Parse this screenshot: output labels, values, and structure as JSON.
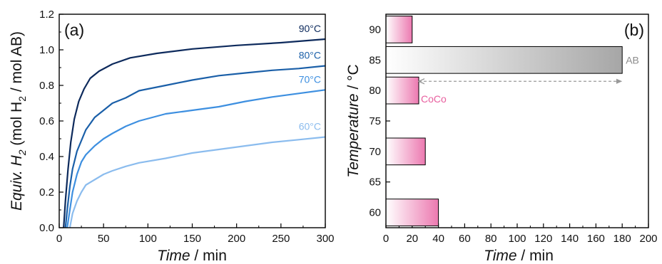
{
  "panels": {
    "a": {
      "label": "(a)"
    },
    "b": {
      "label": "(b)"
    }
  },
  "chart_data": [
    {
      "type": "line",
      "panel": "(a)",
      "xlabel_main": "Time",
      "xlabel_unit": " / min",
      "ylabel_parts": {
        "a": "Equiv. H",
        "b": "2",
        "c": " (mol H",
        "d": "2",
        "e": " / mol AB)"
      },
      "xlim": [
        0,
        300
      ],
      "ylim": [
        0,
        1.2
      ],
      "xticks": [
        0,
        50,
        100,
        150,
        200,
        250,
        300
      ],
      "yticks": [
        0.0,
        0.2,
        0.4,
        0.6,
        0.8,
        1.0,
        1.2
      ],
      "ytick_labels": [
        "0.0",
        "0.2",
        "0.4",
        "0.6",
        "0.8",
        "1.0",
        "1.2"
      ],
      "series": [
        {
          "name": "90°C",
          "color": "#0d2a5c",
          "x": [
            5,
            7,
            10,
            13,
            17,
            22,
            28,
            35,
            45,
            60,
            80,
            110,
            150,
            200,
            250,
            300
          ],
          "y": [
            0.0,
            0.15,
            0.33,
            0.48,
            0.61,
            0.71,
            0.78,
            0.84,
            0.88,
            0.92,
            0.955,
            0.98,
            1.005,
            1.025,
            1.04,
            1.06
          ]
        },
        {
          "name": "80°C",
          "color": "#1a5fa8",
          "x": [
            7,
            9,
            12,
            15,
            20,
            25,
            30,
            40,
            50,
            60,
            75,
            90,
            120,
            150,
            180,
            210,
            240,
            270,
            300
          ],
          "y": [
            0.0,
            0.1,
            0.23,
            0.33,
            0.43,
            0.49,
            0.55,
            0.62,
            0.66,
            0.7,
            0.73,
            0.77,
            0.8,
            0.83,
            0.855,
            0.87,
            0.885,
            0.895,
            0.91
          ]
        },
        {
          "name": "70°C",
          "color": "#3d8fe0",
          "x": [
            9,
            12,
            15,
            20,
            25,
            30,
            40,
            50,
            60,
            75,
            90,
            120,
            150,
            180,
            210,
            240,
            270,
            300
          ],
          "y": [
            0.0,
            0.1,
            0.2,
            0.3,
            0.37,
            0.41,
            0.46,
            0.5,
            0.53,
            0.57,
            0.6,
            0.64,
            0.66,
            0.68,
            0.71,
            0.735,
            0.755,
            0.775
          ]
        },
        {
          "name": "60°C",
          "color": "#8bbcee",
          "x": [
            12,
            15,
            20,
            25,
            30,
            40,
            50,
            60,
            75,
            90,
            120,
            150,
            180,
            210,
            240,
            270,
            300
          ],
          "y": [
            0.0,
            0.08,
            0.15,
            0.2,
            0.24,
            0.27,
            0.3,
            0.32,
            0.345,
            0.365,
            0.39,
            0.42,
            0.44,
            0.46,
            0.48,
            0.495,
            0.51
          ]
        }
      ]
    },
    {
      "type": "bar",
      "orientation": "horizontal",
      "panel": "(b)",
      "xlabel_main": "Time",
      "xlabel_unit": " / min",
      "ylabel_main": "Temperature",
      "ylabel_unit": " / °C",
      "xlim": [
        0,
        200
      ],
      "ylim": [
        57.5,
        92.5
      ],
      "xticks": [
        0,
        20,
        40,
        60,
        80,
        100,
        120,
        140,
        160,
        180,
        200
      ],
      "yticks": [
        60,
        65,
        70,
        75,
        80,
        85,
        90
      ],
      "series": [
        {
          "name": "CoCo",
          "color": "#e8609f",
          "bars": [
            {
              "temperature": 60,
              "time": 40
            },
            {
              "temperature": 70,
              "time": 30
            },
            {
              "temperature": 80,
              "time": 25
            },
            {
              "temperature": 90,
              "time": 20
            }
          ]
        },
        {
          "name": "AB",
          "color": "#8c8c8c",
          "bars": [
            {
              "temperature": 85,
              "time": 180
            }
          ]
        }
      ],
      "annotation": {
        "type": "double-arrow",
        "from_time": 25,
        "to_time": 180,
        "temperature": 81.5,
        "color": "#999999"
      }
    }
  ]
}
